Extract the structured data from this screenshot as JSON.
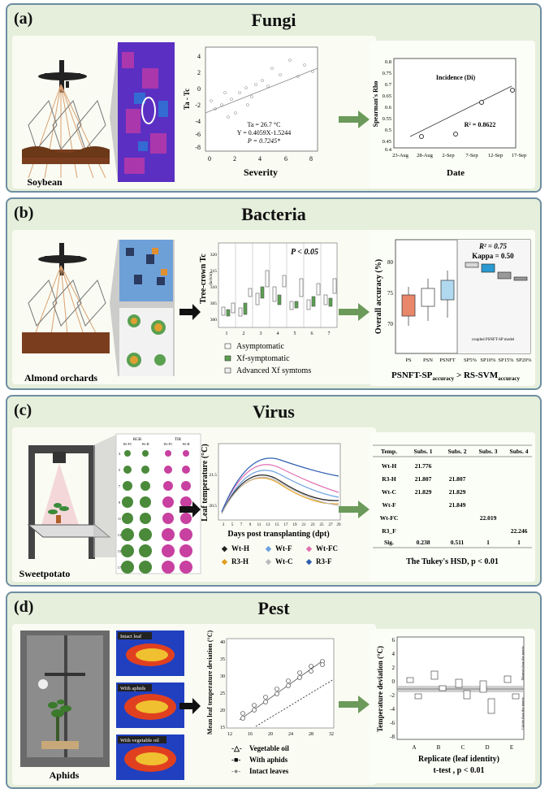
{
  "colors": {
    "panel_bg": "#e6eedc",
    "panel_border": "#6d8ea0",
    "arrow": "#6b9a5a"
  },
  "panels": {
    "a": {
      "label": "(a)",
      "title": "Fungi",
      "host": "Soybean",
      "scatter": {
        "ylabel": "Ta - Tc",
        "xlabel": "Severity",
        "xticks": [
          "0",
          "2",
          "4",
          "6",
          "8"
        ],
        "yticks": [
          "4",
          "2",
          "0",
          "-2",
          "-4",
          "-6",
          "-8"
        ],
        "stats": [
          "Ta = 26.7 °C",
          "Y = 0.4059X-1.5244",
          "P = 0.7245*"
        ]
      },
      "chart": {
        "ylabel": "Spearman's Rho",
        "xlabel": "Date",
        "annotation": "Incidence (Di)",
        "r2": "R² = 0.8622",
        "xticks": [
          "23-Aug",
          "28-Aug",
          "2-Sep",
          "7-Sep",
          "12-Sep",
          "17-Sep"
        ],
        "yticks": [
          "0.8",
          "0.75",
          "0.7",
          "0.65",
          "0.6",
          "0.55",
          "0.5",
          "0.45",
          "0.4"
        ]
      }
    },
    "b": {
      "label": "(b)",
      "title": "Bacteria",
      "host": "Almond orchards",
      "boxplot": {
        "ylabel": "Tree-crown Tc",
        "ylabel_unit": "(kelvin)",
        "pvalue": "P < 0.05",
        "xticks": [
          "1",
          "2",
          "3",
          "4",
          "5",
          "6",
          "7"
        ],
        "yticks": [
          "320",
          "315",
          "310",
          "305",
          "300"
        ],
        "legend": [
          "Asymptomatic",
          "Xf-symptomatic",
          "Advanced Xf symtoms"
        ]
      },
      "accuracy": {
        "ylabel": "Overall accuracy (%)",
        "r2": "R² = 0.75",
        "kappa": "Kappa = 0.50",
        "note": "coupled PSNFT-SP model",
        "yticks": [
          "80",
          "75",
          "70"
        ],
        "xticks": [
          "PS",
          "PSN",
          "PSNFT",
          "SP5%",
          "SP10%",
          "SP15%",
          "SP20%"
        ]
      },
      "caption_a": "PSNFT-SP",
      "caption_sub_a": "accuracy",
      "caption_mid": " > RS-SVM",
      "caption_sub_b": "accuracy"
    },
    "c": {
      "label": "(c)",
      "title": "Virus",
      "host": "Sweetpotato",
      "grid": {
        "col_rgb": "RGB",
        "col_tir": "TIR",
        "sub": [
          "Wt-FC",
          "Wt-H",
          "Wt-FC",
          "Wt-H"
        ],
        "days": [
          "3",
          "5",
          "7",
          "9",
          "11",
          "13",
          "15",
          "17"
        ]
      },
      "line": {
        "ylabel": "Leaf temperature (°C)",
        "xlabel": "Days post transplanting (dpt)",
        "xticks": [
          "3",
          "5",
          "7",
          "9",
          "11",
          "13",
          "15",
          "17",
          "19",
          "21",
          "23",
          "25",
          "27",
          "29"
        ],
        "yticks": [
          "21.5",
          "20.5"
        ],
        "legend": [
          "Wt-H",
          "Wt-F",
          "Wt-FC",
          "R3-H",
          "Wt-C",
          "R3-F"
        ]
      },
      "table": {
        "headers": [
          "Temp.",
          "Subs. 1",
          "Subs. 2",
          "Subs. 3",
          "Subs. 4"
        ],
        "rows": [
          [
            "Wt-H",
            "21.776",
            "",
            "",
            ""
          ],
          [
            "R3-H",
            "21.807",
            "21.807",
            "",
            ""
          ],
          [
            "Wt-C",
            "21.829",
            "21.829",
            "",
            ""
          ],
          [
            "Wt-F",
            "",
            "21.849",
            "",
            ""
          ],
          [
            "Wt-FC",
            "",
            "",
            "22.019",
            ""
          ],
          [
            "R3_F",
            "",
            "",
            "",
            "22.246"
          ],
          [
            "Sig.",
            "0.238",
            "0.511",
            "1",
            "1"
          ]
        ],
        "caption": "The Tukey's HSD, p < 0.01"
      }
    },
    "d": {
      "label": "(d)",
      "title": "Pest",
      "host": "Aphids",
      "thermal": [
        "Intact leaf",
        "With aphids",
        "With vegetable oil"
      ],
      "scatter": {
        "ylabel": "Mean leaf temperature deviation (°C)",
        "xticks": [
          "12",
          "16",
          "20",
          "24",
          "28",
          "32"
        ],
        "yticks": [
          "40",
          "35",
          "30",
          "25",
          "20",
          "15"
        ],
        "legend": [
          "Vegetable oil",
          "With aphids",
          "Intact leaves"
        ]
      },
      "box": {
        "ylabel": "Temperature deviation (°C)",
        "xlabel": "Replicate (leaf identity)",
        "caption": "t-test , p < 0.01",
        "xticks": [
          "A",
          "B",
          "C",
          "D",
          "E"
        ],
        "yticks": [
          "6",
          "4",
          "2",
          "0",
          "-2",
          "-4",
          "-6",
          "-8"
        ],
        "warm": "Warmer than the metric",
        "cold": "Colder than the metric"
      }
    }
  }
}
